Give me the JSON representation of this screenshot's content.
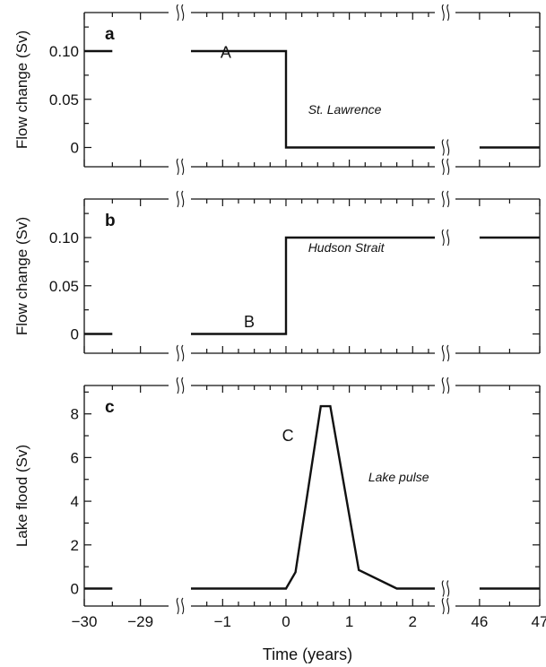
{
  "chart_data": [
    {
      "type": "line",
      "panel_label": "a",
      "ylabel": "Flow change (Sv)",
      "yticks": [
        {
          "v": 0,
          "label": "0"
        },
        {
          "v": 0.05,
          "label": "0.05"
        },
        {
          "v": 0.1,
          "label": "0.10"
        }
      ],
      "ylim": [
        -0.02,
        0.14
      ],
      "yminor": [
        0.025,
        0.075,
        0.125
      ],
      "series_label": "A",
      "series_label_at": [
        -0.95,
        0.093
      ],
      "annotation": "St. Lawrence",
      "annotation_at": [
        0.35,
        0.035
      ],
      "x": [
        -30,
        -29.5,
        -1.5,
        0,
        0,
        2.35,
        46,
        47
      ],
      "y": [
        0.1,
        0.1,
        0.1,
        0.1,
        0,
        0,
        0,
        0
      ]
    },
    {
      "type": "line",
      "panel_label": "b",
      "ylabel": "Flow change (Sv)",
      "yticks": [
        {
          "v": 0,
          "label": "0"
        },
        {
          "v": 0.05,
          "label": "0.05"
        },
        {
          "v": 0.1,
          "label": "0.10"
        }
      ],
      "ylim": [
        -0.02,
        0.14
      ],
      "yminor": [
        0.025,
        0.075,
        0.125
      ],
      "series_label": "B",
      "series_label_at": [
        -0.58,
        0.007
      ],
      "annotation": "Hudson Strait",
      "annotation_at": [
        0.35,
        0.085
      ],
      "x": [
        -30,
        -29.5,
        -1.5,
        0,
        0,
        2.35,
        46,
        47
      ],
      "y": [
        0,
        0,
        0,
        0,
        0.1,
        0.1,
        0.1,
        0.1
      ]
    },
    {
      "type": "line",
      "panel_label": "c",
      "ylabel": "Lake flood (Sv)",
      "yticks": [
        {
          "v": 0,
          "label": "0"
        },
        {
          "v": 2,
          "label": "2"
        },
        {
          "v": 4,
          "label": "4"
        },
        {
          "v": 6,
          "label": "6"
        },
        {
          "v": 8,
          "label": "8"
        }
      ],
      "ylim": [
        -0.8,
        9.3
      ],
      "yminor": [
        1,
        3,
        5,
        7,
        9
      ],
      "series_label": "C",
      "series_label_at": [
        0.03,
        6.75
      ],
      "annotation": "Lake pulse",
      "annotation_at": [
        1.3,
        4.9
      ],
      "x": [
        -30,
        -29.5,
        -1.5,
        0,
        0.15,
        0.55,
        0.7,
        1.15,
        1.75,
        2.35,
        46,
        47
      ],
      "y": [
        0,
        0,
        0,
        0,
        0.75,
        8.35,
        8.35,
        0.85,
        0,
        0,
        0,
        0
      ]
    }
  ],
  "x_axis": {
    "label": "Time (years)",
    "segments": [
      {
        "range": [
          -30,
          -28.5
        ],
        "ticks": [
          {
            "v": -30,
            "label": "−30"
          },
          {
            "v": -29,
            "label": "−29"
          }
        ],
        "minor": [
          -29.5
        ]
      },
      {
        "range": [
          -1.5,
          2.35
        ],
        "ticks": [
          {
            "v": -1,
            "label": "−1"
          },
          {
            "v": 0,
            "label": "0"
          },
          {
            "v": 1,
            "label": "1"
          },
          {
            "v": 2,
            "label": "2"
          }
        ],
        "minor": [
          -1.25,
          -0.75,
          -0.5,
          -0.25,
          0.25,
          0.5,
          0.75,
          1.25,
          1.5,
          1.75,
          2.25
        ]
      },
      {
        "range": [
          45.6,
          47
        ],
        "ticks": [
          {
            "v": 46,
            "label": "46"
          },
          {
            "v": 47,
            "label": "47"
          }
        ],
        "minor": [
          46.5
        ]
      }
    ]
  }
}
